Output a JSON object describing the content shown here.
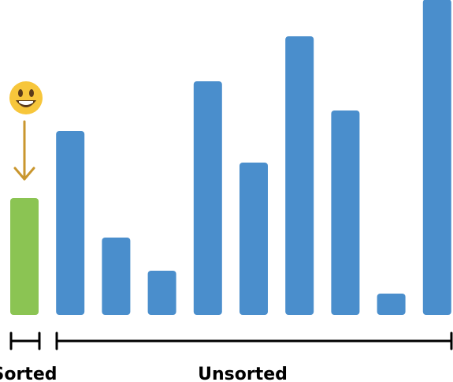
{
  "colors": {
    "sorted_bar": "#8bc453",
    "unsorted_bar": "#4a8ecc",
    "arrow": "#c9962e",
    "bracket": "#000000",
    "emoji_face": "#f7c63b",
    "emoji_features": "#5a3a1a"
  },
  "bars": [
    {
      "group": "sorted",
      "value": 148
    },
    {
      "group": "unsorted",
      "value": 233
    },
    {
      "group": "unsorted",
      "value": 98
    },
    {
      "group": "unsorted",
      "value": 56
    },
    {
      "group": "unsorted",
      "value": 296
    },
    {
      "group": "unsorted",
      "value": 193
    },
    {
      "group": "unsorted",
      "value": 353
    },
    {
      "group": "unsorted",
      "value": 259
    },
    {
      "group": "unsorted",
      "value": 27
    },
    {
      "group": "unsorted",
      "value": 400
    }
  ],
  "pointer": {
    "icon": "smiley-emoji-icon",
    "arrow_icon": "arrow-down-icon"
  },
  "labels": {
    "sorted": "Sorted",
    "unsorted": "Unsorted"
  }
}
